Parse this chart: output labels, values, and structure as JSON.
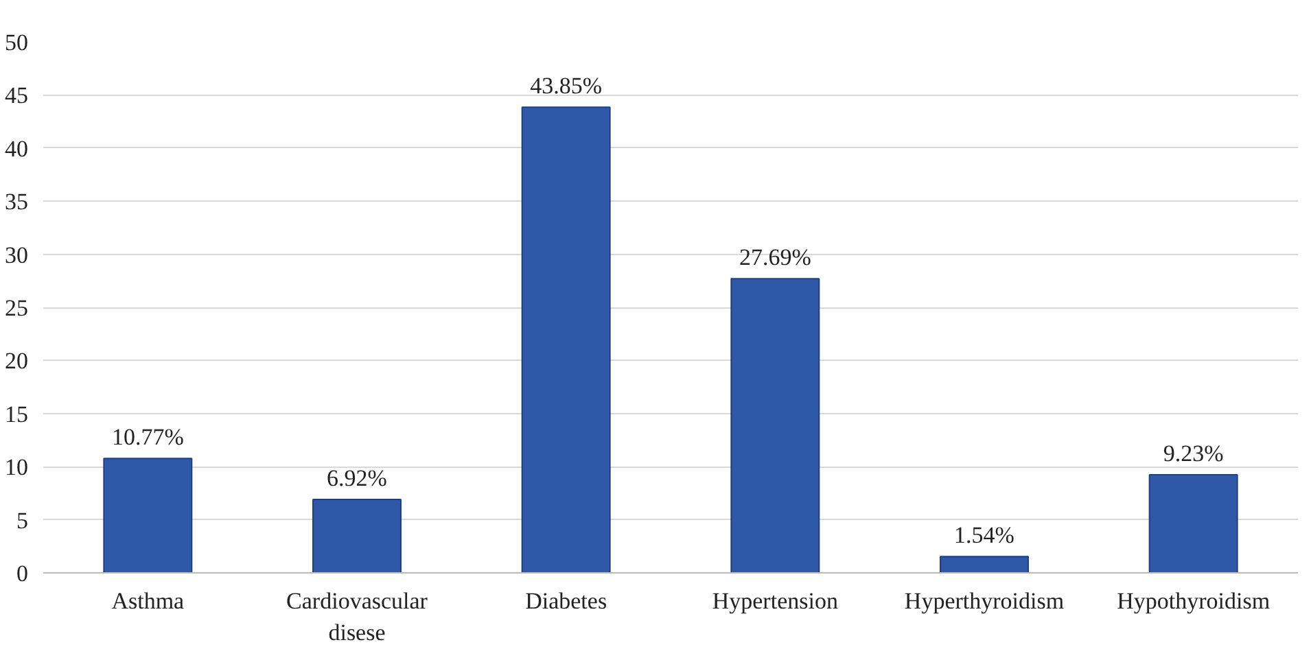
{
  "chart_data": {
    "type": "bar",
    "categories": [
      "Asthma",
      "Cardiovascular disese",
      "Diabetes",
      "Hypertension",
      "Hyperthyroidism",
      "Hypothyroidism"
    ],
    "values": [
      10.77,
      6.92,
      43.85,
      27.69,
      1.54,
      9.23
    ],
    "value_labels": [
      "10.77%",
      "6.92%",
      "43.85%",
      "27.69%",
      "1.54%",
      "9.23%"
    ],
    "color": "#2f58a8",
    "ylim": [
      0,
      50
    ],
    "yticks": [
      0,
      5,
      10,
      15,
      20,
      25,
      30,
      35,
      40,
      45,
      50
    ],
    "grid": "y"
  }
}
